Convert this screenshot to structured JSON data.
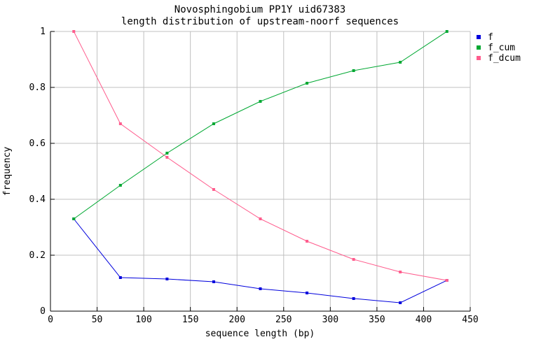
{
  "title": {
    "line1": "Novosphingobium PP1Y uid67383",
    "line2": "length distribution of upstream-noorf sequences"
  },
  "chart_data": {
    "type": "line",
    "title": "Novosphingobium PP1Y uid67383 — length distribution of upstream-noorf sequences",
    "xlabel": "sequence length (bp)",
    "ylabel": "frequency",
    "xlim": [
      0,
      450
    ],
    "ylim": [
      0,
      1
    ],
    "xtick_labels": [
      "0",
      "50",
      "100",
      "150",
      "200",
      "250",
      "300",
      "350",
      "400",
      "450"
    ],
    "ytick_labels": [
      "0",
      "0.2",
      "0.4",
      "0.6",
      "0.8",
      "1"
    ],
    "grid": true,
    "legend_position": "outside-top-right",
    "x": [
      25,
      75,
      125,
      175,
      225,
      275,
      325,
      375,
      425
    ],
    "series": [
      {
        "name": "f",
        "color": "#0000dd",
        "values": [
          0.33,
          0.12,
          0.115,
          0.105,
          0.08,
          0.065,
          0.045,
          0.03,
          0.11
        ]
      },
      {
        "name": "f_cum",
        "color": "#00a832",
        "values": [
          0.33,
          0.45,
          0.565,
          0.67,
          0.75,
          0.815,
          0.86,
          0.89,
          1.0
        ]
      },
      {
        "name": "f_dcum",
        "color": "#ff5c8d",
        "values": [
          1.0,
          0.67,
          0.55,
          0.435,
          0.33,
          0.25,
          0.185,
          0.14,
          0.11
        ]
      }
    ]
  },
  "colors": {
    "background": "#ffffff",
    "grid": "#c0c0c0",
    "axis": "#000000",
    "text": "#000000"
  }
}
